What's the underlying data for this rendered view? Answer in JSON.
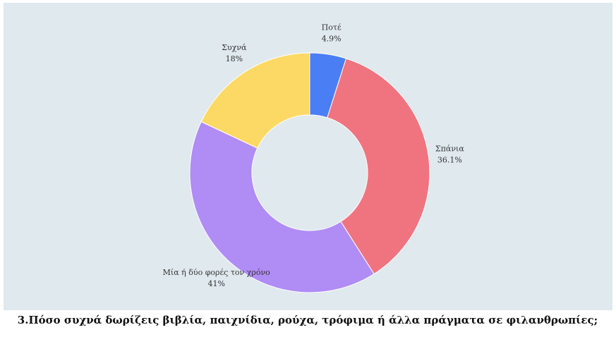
{
  "chart_data": {
    "type": "donut",
    "title": "3.Πόσο συχνά δωρίζεις βιβλία, παιχνίδια, ρούχα, τρόφιμα ή άλλα πράγματα σε φιλανθρωπίες;",
    "categories": [
      "Ποτέ",
      "Σπάνια",
      "Μία ή δύο φορές τον χρόνο",
      "Συχνά"
    ],
    "values": [
      4.9,
      36.1,
      41,
      18
    ],
    "value_labels": [
      "4.9%",
      "36.1%",
      "41%",
      "18%"
    ],
    "colors": [
      "#4a7ef5",
      "#f07480",
      "#b08cf5",
      "#fcd964"
    ]
  }
}
